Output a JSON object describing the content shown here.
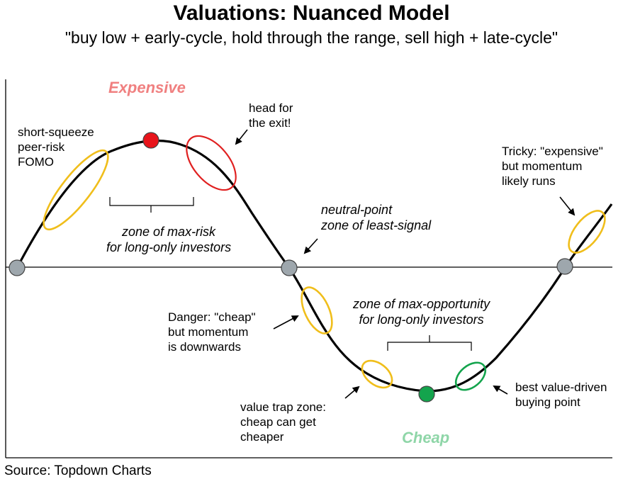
{
  "title": "Valuations: Nuanced Model",
  "subtitle": "\"buy low + early-cycle, hold through the range, sell high + late-cycle\"",
  "source": "Source: Topdown Charts",
  "colors": {
    "curve": "#000000",
    "axis": "#000000",
    "neutral_dot": "#9ea7ad",
    "peak_dot": "#e8141b",
    "trough_dot": "#14a44d",
    "yellow_ellipse": "#f0be1b",
    "red_ellipse": "#e02020",
    "green_ellipse": "#14a44d",
    "expensive_label": "#f08080",
    "cheap_label": "#8fd6a8"
  },
  "zones": {
    "expensive": "Expensive",
    "cheap": "Cheap"
  },
  "annotations": {
    "short_squeeze": "short-squeeze\npeer-risk\nFOMO",
    "head_for_exit": "head for\nthe exit!",
    "zone_max_risk": "zone of max-risk\nfor long-only investors",
    "neutral_point": "neutral-point\nzone of least-signal",
    "tricky_expensive": "Tricky: \"expensive\"\nbut momentum\nlikely runs",
    "danger_cheap": "Danger: \"cheap\"\nbut momentum\nis downwards",
    "zone_max_opportunity": "zone of max-opportunity\nfor long-only investors",
    "value_trap": "value trap zone:\ncheap can get\ncheaper",
    "best_value": "best value-driven\nbuying point"
  }
}
